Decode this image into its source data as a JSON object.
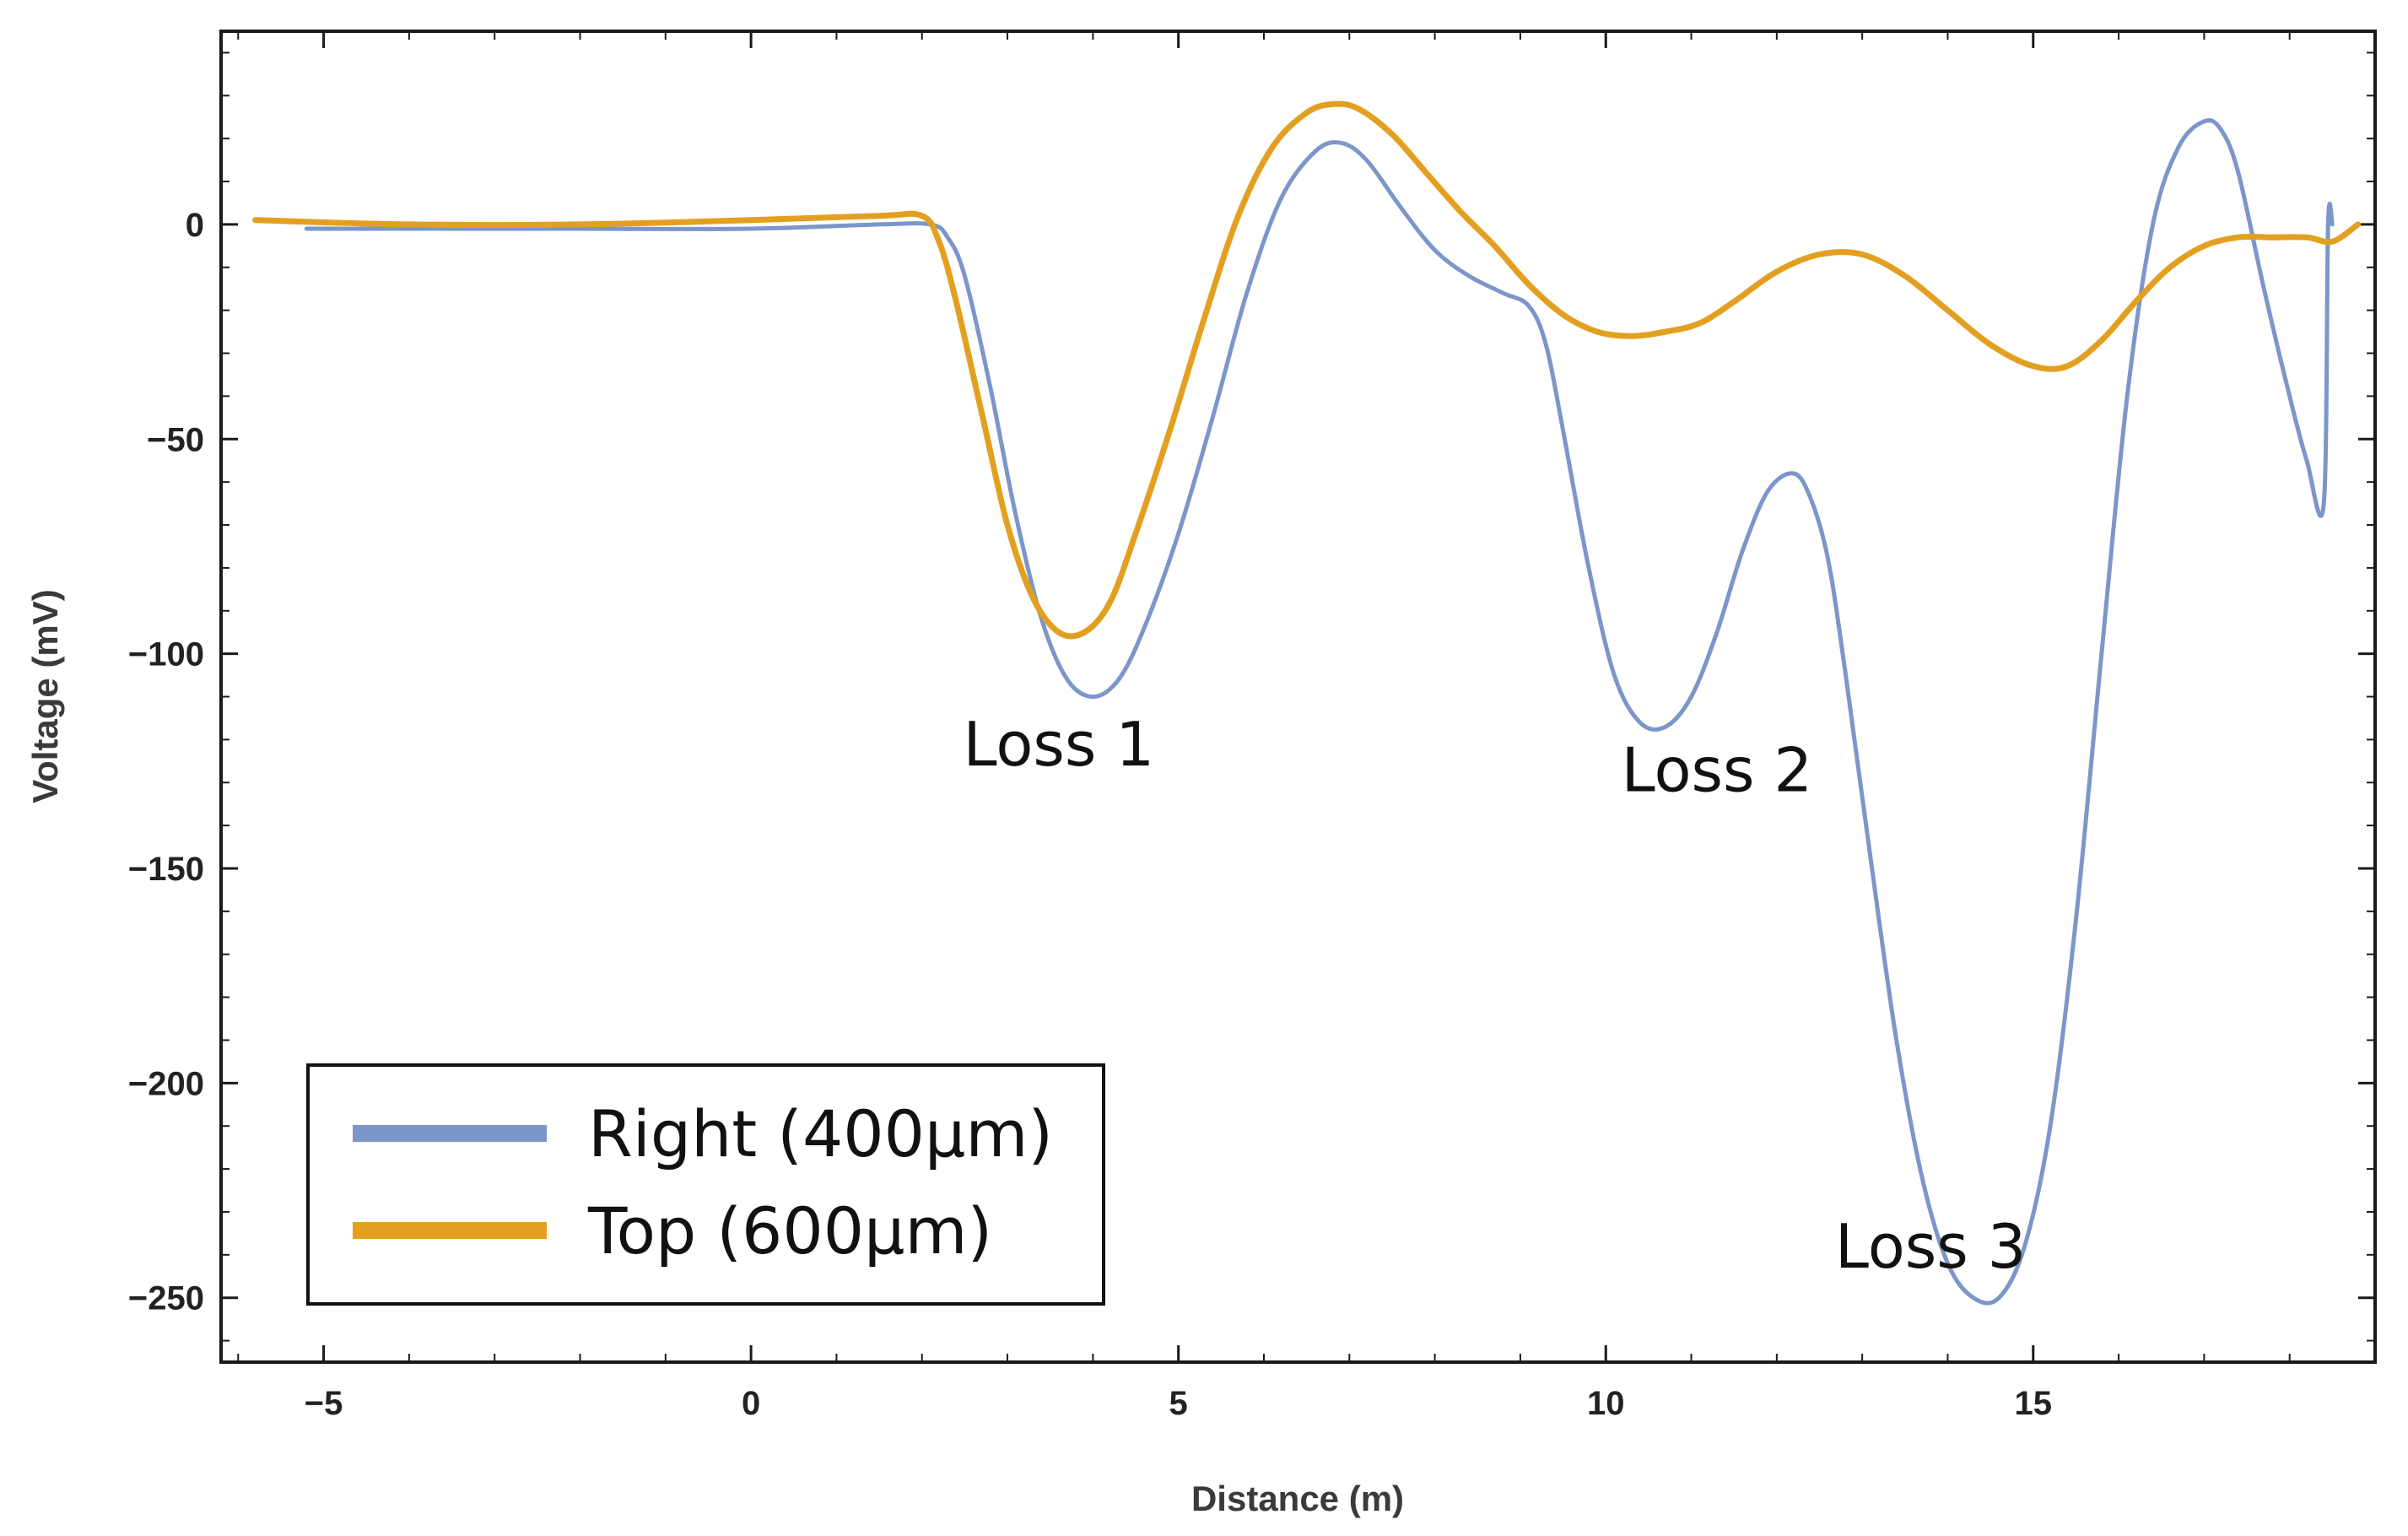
{
  "chart_data": {
    "type": "line",
    "title": "",
    "xlabel": "Distance (m)",
    "ylabel": "Voltage (mV)",
    "xlim": [
      -6.2,
      19.0
    ],
    "ylim": [
      -265,
      45
    ],
    "xticks": [
      -5,
      0,
      5,
      10,
      15
    ],
    "yticks": [
      0,
      -50,
      -100,
      -150,
      -200,
      -250
    ],
    "x_tick_labels": [
      "−5",
      "0",
      "5",
      "10",
      "15"
    ],
    "y_tick_labels": [
      "0",
      "−50",
      "−100",
      "−150",
      "−200",
      "−250"
    ],
    "grid": false,
    "legend_position": "bottom-left",
    "series": [
      {
        "name": "Right (400µm)",
        "color": "#7b96c8",
        "x": [
          -5.2,
          -4,
          -2,
          0,
          1.5,
          2.1,
          2.3,
          2.5,
          2.8,
          3.1,
          3.4,
          3.7,
          4.0,
          4.3,
          4.6,
          5.0,
          5.4,
          5.8,
          6.2,
          6.6,
          6.9,
          7.2,
          7.6,
          8.0,
          8.4,
          8.8,
          9.1,
          9.3,
          9.5,
          9.8,
          10.1,
          10.4,
          10.7,
          11.0,
          11.3,
          11.6,
          11.9,
          12.2,
          12.4,
          12.6,
          12.8,
          13.1,
          13.4,
          13.7,
          14.0,
          14.3,
          14.6,
          14.9,
          15.2,
          15.5,
          15.8,
          16.1,
          16.4,
          16.7,
          17.0,
          17.2,
          17.4,
          17.7,
          18.0,
          18.2,
          18.4,
          18.45,
          18.5
        ],
        "y": [
          -1,
          -1,
          -1,
          -1,
          0,
          0,
          -3,
          -12,
          -38,
          -68,
          -92,
          -106,
          -110,
          -106,
          -94,
          -72,
          -45,
          -16,
          6,
          17,
          19,
          15,
          4,
          -6,
          -12,
          -16,
          -19,
          -28,
          -48,
          -80,
          -105,
          -116,
          -117,
          -110,
          -95,
          -76,
          -62,
          -58,
          -64,
          -78,
          -104,
          -148,
          -190,
          -222,
          -242,
          -250,
          -250,
          -238,
          -210,
          -162,
          -100,
          -40,
          0,
          18,
          24,
          22,
          12,
          -15,
          -40,
          -55,
          -65,
          0,
          0
        ]
      },
      {
        "name": "Top (600µm)",
        "color": "#e3a020",
        "x": [
          -5.8,
          -4,
          -2,
          0,
          1.5,
          2.0,
          2.2,
          2.4,
          2.7,
          3.0,
          3.3,
          3.6,
          3.9,
          4.2,
          4.5,
          4.9,
          5.3,
          5.7,
          6.1,
          6.5,
          6.8,
          7.1,
          7.5,
          7.9,
          8.3,
          8.7,
          9.1,
          9.5,
          9.9,
          10.3,
          10.7,
          11.1,
          11.5,
          12.0,
          12.5,
          13.0,
          13.5,
          14.0,
          14.5,
          15.0,
          15.4,
          15.8,
          16.2,
          16.6,
          17.0,
          17.4,
          17.8,
          18.2,
          18.5,
          18.8
        ],
        "y": [
          1,
          0,
          0,
          1,
          2,
          2,
          -4,
          -18,
          -44,
          -70,
          -87,
          -95,
          -95,
          -88,
          -72,
          -48,
          -22,
          2,
          18,
          26,
          28,
          27,
          21,
          12,
          3,
          -5,
          -14,
          -21,
          -25,
          -26,
          -25,
          -23,
          -18,
          -11,
          -7,
          -7,
          -12,
          -20,
          -28,
          -33,
          -33,
          -27,
          -18,
          -10,
          -5,
          -3,
          -3,
          -3,
          -4,
          0
        ]
      }
    ],
    "annotations": [
      {
        "text": "Loss 1",
        "x": 3.6,
        "y": -126
      },
      {
        "text": "Loss 2",
        "x": 11.3,
        "y": -132
      },
      {
        "text": "Loss 3",
        "x": 13.8,
        "y": -243
      }
    ]
  }
}
